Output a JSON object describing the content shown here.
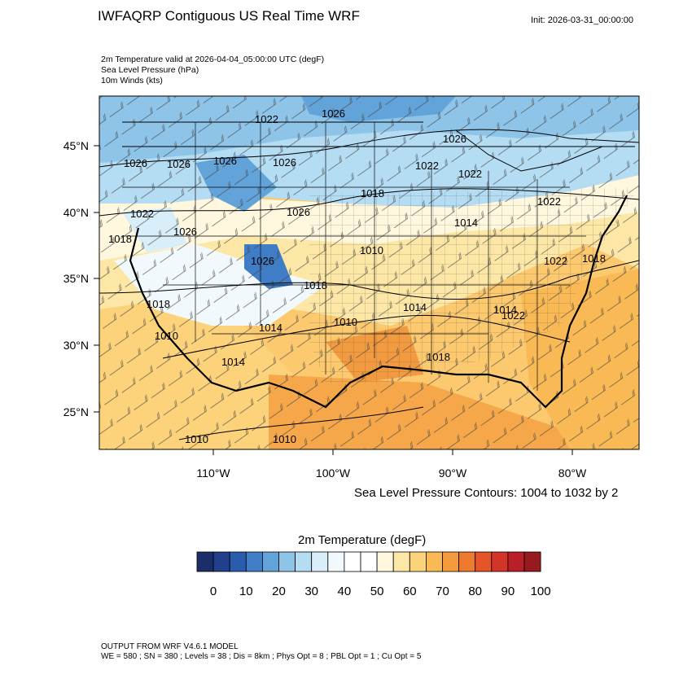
{
  "title": "IWFAQRP Contiguous US Real Time WRF",
  "init": "Init: 2026-03-31_00:00:00",
  "subtitles": {
    "line1": "2m Temperature valid at 2026-04-04_05:00:00 UTC   (degF)",
    "line2": "Sea Level Pressure   (hPa)",
    "line3": "10m Winds   (kts)"
  },
  "map": {
    "lat_labels": [
      "45°N",
      "40°N",
      "35°N",
      "30°N",
      "25°N"
    ],
    "lon_labels": [
      "110°W",
      "100°W",
      "90°W",
      "80°W"
    ],
    "slp_labels": [
      "1026",
      "1022",
      "1026",
      "1026",
      "1026",
      "1026",
      "1026",
      "1022",
      "1022",
      "1022",
      "1018",
      "1026",
      "1018",
      "1026",
      "1014",
      "1022",
      "1026",
      "1018",
      "1010",
      "1022",
      "1018",
      "1014",
      "1010",
      "1010",
      "1014",
      "1014",
      "1018",
      "1022",
      "1014",
      "1010",
      "1010",
      "1018"
    ]
  },
  "slp_caption": "Sea Level Pressure Contours: 1004 to 1032 by 2",
  "colorbar": {
    "title": "2m Temperature  (degF)",
    "labels": [
      "0",
      "10",
      "20",
      "30",
      "40",
      "50",
      "60",
      "70",
      "80",
      "90",
      "100"
    ],
    "colors": [
      "#1c2e6a",
      "#213f8c",
      "#2a5cae",
      "#3f7ec6",
      "#62a3d9",
      "#8ec4e8",
      "#b4dcf3",
      "#d8eef9",
      "#f2f9fc",
      "#ffffff",
      "#ffffff",
      "#fff8de",
      "#fde7a6",
      "#fcd27a",
      "#f9b955",
      "#f49c3c",
      "#ee7a2e",
      "#e5552a",
      "#d33428",
      "#b81f26",
      "#971a1f"
    ]
  },
  "footer": {
    "line1": "OUTPUT FROM WRF V4.6.1 MODEL",
    "line2": "WE = 580 ; SN = 380 ; Levels = 38 ; Dis = 8km ; Phys Opt = 8 ; PBL Opt = 1 ; Cu Opt = 5"
  }
}
